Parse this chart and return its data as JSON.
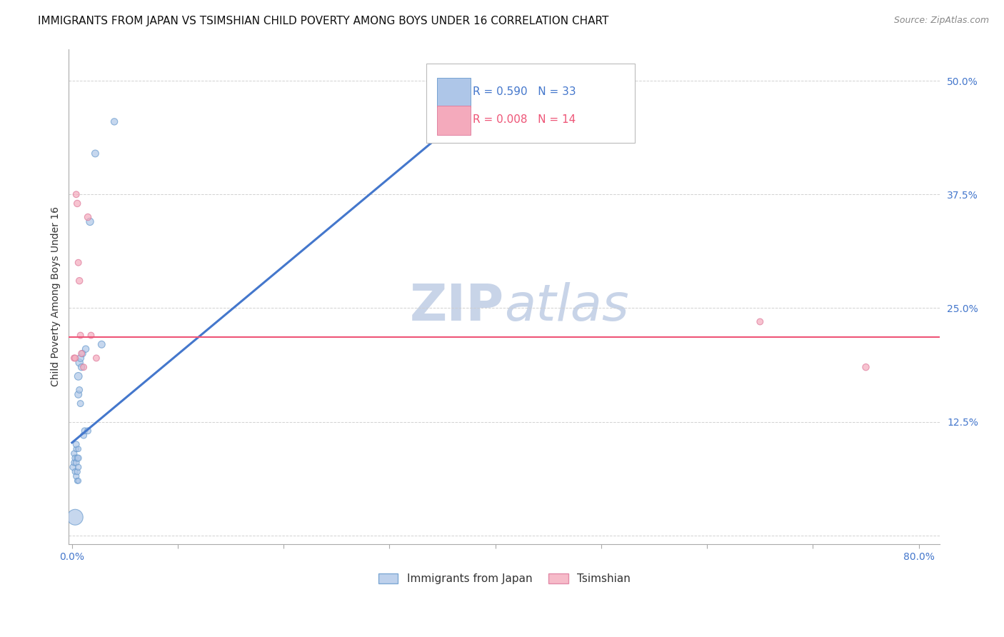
{
  "title": "IMMIGRANTS FROM JAPAN VS TSIMSHIAN CHILD POVERTY AMONG BOYS UNDER 16 CORRELATION CHART",
  "source": "Source: ZipAtlas.com",
  "ylabel": "Child Poverty Among Boys Under 16",
  "xlim": [
    -0.003,
    0.82
  ],
  "ylim": [
    -0.01,
    0.535
  ],
  "xticks": [
    0.0,
    0.1,
    0.2,
    0.3,
    0.4,
    0.5,
    0.6,
    0.7,
    0.8
  ],
  "xtick_labels": [
    "0.0%",
    "",
    "",
    "",
    "",
    "",
    "",
    "",
    "80.0%"
  ],
  "yticks": [
    0.0,
    0.125,
    0.25,
    0.375,
    0.5
  ],
  "ytick_labels": [
    "",
    "12.5%",
    "25.0%",
    "37.5%",
    "50.0%"
  ],
  "legend_blue_r": "R = 0.590",
  "legend_blue_n": "N = 33",
  "legend_pink_r": "R = 0.008",
  "legend_pink_n": "N = 14",
  "legend_label_blue": "Immigrants from Japan",
  "legend_label_pink": "Tsimshian",
  "watermark_zip": "ZIP",
  "watermark_atlas": "atlas",
  "blue_color": "#AEC6E8",
  "pink_color": "#F4AABC",
  "blue_edge_color": "#6699CC",
  "pink_edge_color": "#DD7799",
  "blue_line_color": "#4477CC",
  "pink_line_color": "#EE5577",
  "blue_scatter_x": [
    0.001,
    0.002,
    0.002,
    0.003,
    0.003,
    0.004,
    0.004,
    0.004,
    0.004,
    0.005,
    0.005,
    0.005,
    0.006,
    0.006,
    0.006,
    0.006,
    0.006,
    0.007,
    0.007,
    0.008,
    0.008,
    0.009,
    0.01,
    0.011,
    0.012,
    0.013,
    0.015,
    0.017,
    0.022,
    0.028,
    0.04,
    0.003,
    0.006
  ],
  "blue_scatter_y": [
    0.075,
    0.08,
    0.09,
    0.07,
    0.085,
    0.065,
    0.08,
    0.095,
    0.1,
    0.06,
    0.07,
    0.085,
    0.06,
    0.075,
    0.085,
    0.095,
    0.155,
    0.16,
    0.19,
    0.145,
    0.195,
    0.185,
    0.2,
    0.11,
    0.115,
    0.205,
    0.115,
    0.345,
    0.42,
    0.21,
    0.455,
    0.02,
    0.175
  ],
  "blue_scatter_size": [
    40,
    35,
    35,
    35,
    40,
    35,
    40,
    30,
    40,
    30,
    35,
    40,
    30,
    35,
    40,
    30,
    50,
    40,
    55,
    40,
    50,
    45,
    45,
    40,
    40,
    45,
    40,
    55,
    50,
    50,
    45,
    250,
    60
  ],
  "pink_scatter_x": [
    0.002,
    0.003,
    0.004,
    0.005,
    0.006,
    0.007,
    0.008,
    0.009,
    0.011,
    0.015,
    0.018,
    0.023,
    0.65,
    0.75
  ],
  "pink_scatter_y": [
    0.195,
    0.195,
    0.375,
    0.365,
    0.3,
    0.28,
    0.22,
    0.2,
    0.185,
    0.35,
    0.22,
    0.195,
    0.235,
    0.185
  ],
  "pink_scatter_size": [
    40,
    40,
    40,
    45,
    40,
    45,
    40,
    40,
    40,
    45,
    40,
    40,
    40,
    45
  ],
  "blue_line_x": [
    0.0,
    0.415
  ],
  "blue_line_y": [
    0.102,
    0.505
  ],
  "pink_line_y": 0.218,
  "title_fontsize": 11,
  "axis_label_fontsize": 10,
  "tick_fontsize": 10,
  "watermark_fontsize": 52,
  "watermark_color": "#C8D4E8",
  "background_color": "#FFFFFF",
  "legend_box_facecolor": "#FFFFFF",
  "legend_box_edgecolor": "#CCCCCC"
}
